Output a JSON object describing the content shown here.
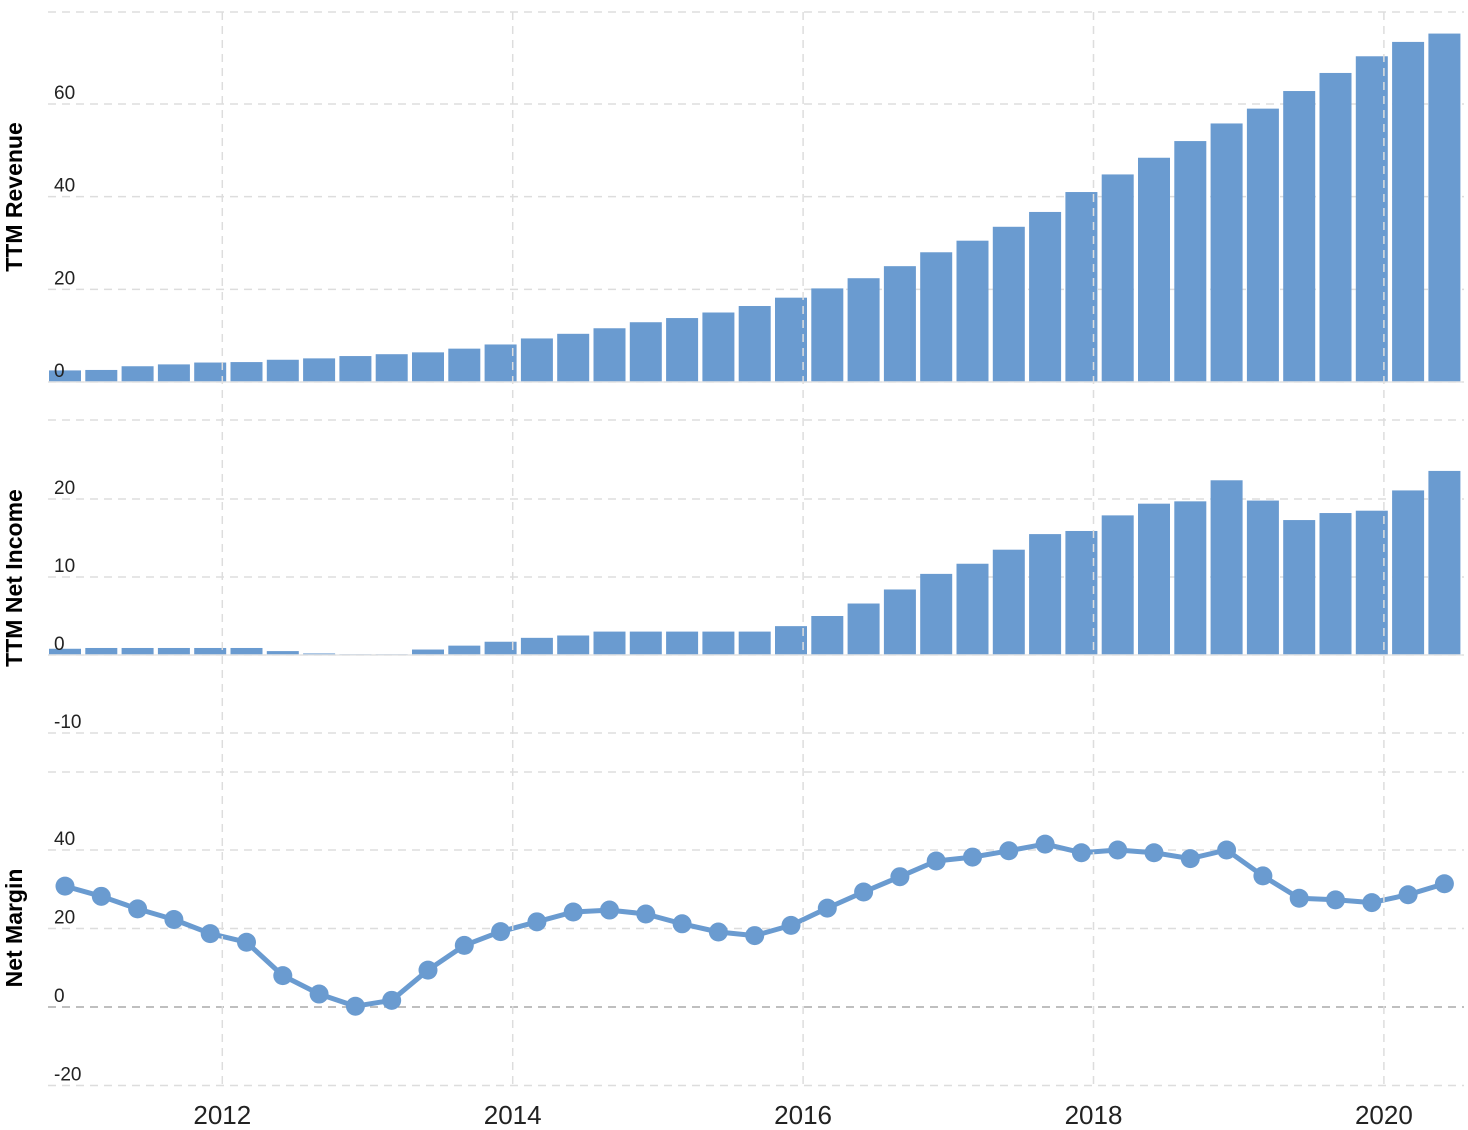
{
  "chart_data": [
    {
      "type": "bar",
      "ylabel": "TTM Revenue",
      "ylim": [
        0,
        75
      ],
      "yticks": [
        0,
        20,
        40,
        60
      ],
      "grid": true,
      "color": "#6a9bd0",
      "x": [
        "2010-12",
        "2011-03",
        "2011-06",
        "2011-09",
        "2011-12",
        "2012-03",
        "2012-06",
        "2012-09",
        "2012-12",
        "2013-03",
        "2013-06",
        "2013-09",
        "2013-12",
        "2014-03",
        "2014-06",
        "2014-09",
        "2014-12",
        "2015-03",
        "2015-06",
        "2015-09",
        "2015-12",
        "2016-03",
        "2016-06",
        "2016-09",
        "2016-12",
        "2017-03",
        "2017-06",
        "2017-09",
        "2017-12",
        "2018-03",
        "2018-06",
        "2018-09",
        "2018-12",
        "2019-03",
        "2019-06",
        "2019-09",
        "2019-12",
        "2020-03",
        "2020-06"
      ],
      "values": [
        2.5,
        2.6,
        3.4,
        3.8,
        4.2,
        4.3,
        4.8,
        5.1,
        5.6,
        6.0,
        6.4,
        7.2,
        8.1,
        9.4,
        10.4,
        11.6,
        12.9,
        13.8,
        15.0,
        16.4,
        18.2,
        20.2,
        22.4,
        25.0,
        28.0,
        30.5,
        33.5,
        36.7,
        41.0,
        44.8,
        48.4,
        52.0,
        55.8,
        59.0,
        62.8,
        66.7,
        70.3,
        73.4,
        75.2
      ]
    },
    {
      "type": "bar",
      "ylabel": "TTM Net Income",
      "ylim": [
        -10,
        20
      ],
      "yticks": [
        -10,
        0,
        10,
        20
      ],
      "grid": true,
      "color": "#6a9bd0",
      "x": [
        "2010-12",
        "2011-03",
        "2011-06",
        "2011-09",
        "2011-12",
        "2012-03",
        "2012-06",
        "2012-09",
        "2012-12",
        "2013-03",
        "2013-06",
        "2013-09",
        "2013-12",
        "2014-03",
        "2014-06",
        "2014-09",
        "2014-12",
        "2015-03",
        "2015-06",
        "2015-09",
        "2015-12",
        "2016-03",
        "2016-06",
        "2016-09",
        "2016-12",
        "2017-03",
        "2017-06",
        "2017-09",
        "2017-12",
        "2018-03",
        "2018-06",
        "2018-09",
        "2018-12",
        "2019-03",
        "2019-06",
        "2019-09",
        "2019-12",
        "2020-03",
        "2020-06"
      ],
      "values": [
        0.8,
        0.9,
        0.9,
        0.9,
        0.9,
        0.9,
        0.5,
        0.2,
        0.1,
        0.1,
        0.7,
        1.2,
        1.7,
        2.2,
        2.5,
        3.0,
        3.0,
        3.0,
        3.0,
        3.0,
        3.7,
        5.0,
        6.6,
        8.4,
        10.4,
        11.7,
        13.5,
        15.5,
        15.9,
        17.9,
        19.4,
        19.7,
        22.4,
        19.8,
        17.3,
        18.2,
        18.5,
        21.1,
        23.6
      ]
    },
    {
      "type": "line",
      "ylabel": "Net Margin",
      "ylim": [
        -20,
        40
      ],
      "yticks": [
        -20,
        0,
        20,
        40
      ],
      "grid": true,
      "color": "#6a9bd0",
      "x": [
        "2010-12",
        "2011-03",
        "2011-06",
        "2011-09",
        "2011-12",
        "2012-03",
        "2012-06",
        "2012-09",
        "2012-12",
        "2013-03",
        "2013-06",
        "2013-09",
        "2013-12",
        "2014-03",
        "2014-06",
        "2014-09",
        "2014-12",
        "2015-03",
        "2015-06",
        "2015-09",
        "2015-12",
        "2016-03",
        "2016-06",
        "2016-09",
        "2016-12",
        "2017-03",
        "2017-06",
        "2017-09",
        "2017-12",
        "2018-03",
        "2018-06",
        "2018-09",
        "2018-12",
        "2019-03",
        "2019-06",
        "2019-09",
        "2019-12",
        "2020-03",
        "2020-06"
      ],
      "values": [
        30.8,
        28.2,
        25.0,
        22.3,
        18.7,
        16.5,
        8.0,
        3.3,
        0.2,
        1.7,
        9.4,
        15.7,
        19.2,
        21.7,
        24.2,
        24.7,
        23.7,
        21.2,
        19.1,
        18.2,
        20.8,
        25.2,
        29.3,
        33.2,
        37.2,
        38.2,
        39.8,
        41.5,
        39.3,
        40.0,
        39.3,
        37.8,
        40.0,
        33.4,
        27.7,
        27.3,
        26.6,
        28.6,
        31.4
      ]
    }
  ],
  "x_axis": {
    "ticks": [
      "2012",
      "2014",
      "2016",
      "2018",
      "2020"
    ]
  }
}
